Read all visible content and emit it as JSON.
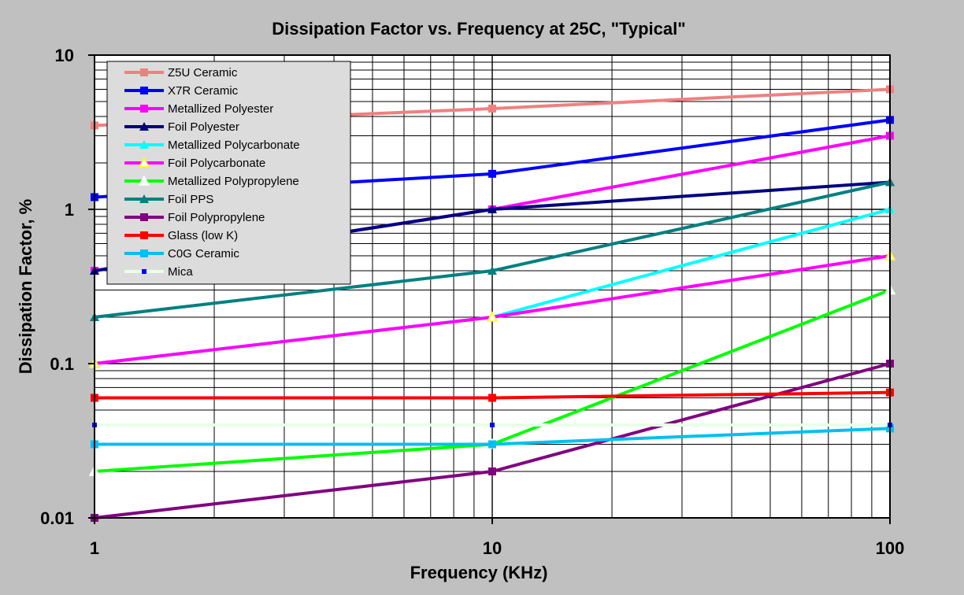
{
  "chart_data": {
    "type": "line",
    "title": "Dissipation Factor vs. Frequency at 25C, \"Typical\"",
    "xlabel": "Frequency (KHz)",
    "ylabel": "Dissipation Factor, %",
    "x_scale": "log",
    "y_scale": "log",
    "xlim": [
      1,
      100
    ],
    "ylim": [
      0.01,
      10
    ],
    "x_ticks": [
      1,
      10,
      100
    ],
    "x_tick_labels": [
      "1",
      "10",
      "100"
    ],
    "y_ticks": [
      0.01,
      0.1,
      1,
      10
    ],
    "y_tick_labels": [
      "0.01",
      "0.1",
      "1",
      "10"
    ],
    "grid": true,
    "legend_position": "top-left",
    "x": [
      1,
      10,
      100
    ],
    "series": [
      {
        "name": "Z5U Ceramic",
        "values": [
          3.5,
          4.5,
          6.0
        ],
        "color": "#f08080",
        "marker": "square",
        "line": true
      },
      {
        "name": "X7R Ceramic",
        "values": [
          1.2,
          1.7,
          3.8
        ],
        "color": "#0000ff",
        "marker": "square",
        "line": true
      },
      {
        "name": "Metallized Polyester",
        "values": [
          0.4,
          1.0,
          3.0
        ],
        "color": "#ff00ff",
        "marker": "square",
        "line": true
      },
      {
        "name": "Foil Polyester",
        "values": [
          0.4,
          1.0,
          1.5
        ],
        "color": "#000080",
        "marker": "triangle",
        "line": true
      },
      {
        "name": "Metallized Polycarbonate",
        "values": [
          0.1,
          0.2,
          1.0
        ],
        "color": "#00ffff",
        "marker": "triangle",
        "line": true
      },
      {
        "name": "Foil Polycarbonate",
        "values": [
          0.1,
          0.2,
          0.5
        ],
        "color": "#ff00ff",
        "marker": "triangle-open",
        "markerColor": "#ffff00",
        "line": true
      },
      {
        "name": "Metallized Polypropylene",
        "values": [
          0.02,
          0.03,
          0.3
        ],
        "color": "#00ff00",
        "marker": "triangle-open",
        "markerColor": "#ffffff",
        "line": true
      },
      {
        "name": "Foil PPS",
        "values": [
          0.2,
          0.4,
          1.5
        ],
        "color": "#008080",
        "marker": "triangle",
        "line": true
      },
      {
        "name": "Foil Polypropylene",
        "values": [
          0.01,
          0.02,
          0.1
        ],
        "color": "#800080",
        "marker": "square",
        "line": true
      },
      {
        "name": "Glass (low K)",
        "values": [
          0.06,
          0.06,
          0.065
        ],
        "color": "#ff0000",
        "marker": "square",
        "line": true
      },
      {
        "name": "C0G Ceramic",
        "values": [
          0.03,
          0.03,
          0.038
        ],
        "color": "#00c0f0",
        "marker": "square",
        "line": true
      },
      {
        "name": "Mica",
        "values": [
          0.04,
          0.04,
          0.04
        ],
        "color": "#0000ff",
        "marker": "dot",
        "line": true,
        "lineColor": "#e8ffe8"
      }
    ]
  }
}
